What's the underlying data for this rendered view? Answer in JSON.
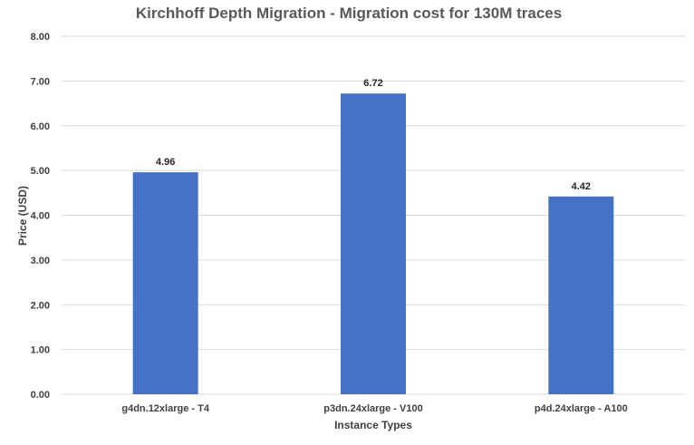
{
  "chart_data": {
    "type": "bar",
    "title": "Kirchhoff Depth Migration - Migration cost for 130M traces",
    "xlabel": "Instance Types",
    "ylabel": "Price (USD)",
    "categories": [
      "g4dn.12xlarge - T4",
      "p3dn.24xlarge - V100",
      "p4d.24xlarge - A100"
    ],
    "values": [
      4.96,
      6.72,
      4.42
    ],
    "data_labels": [
      "4.96",
      "6.72",
      "4.42"
    ],
    "ylim": [
      0,
      8
    ],
    "yticks": [
      0,
      1,
      2,
      3,
      4,
      5,
      6,
      7,
      8
    ],
    "ytick_labels": [
      "0.00",
      "1.00",
      "2.00",
      "3.00",
      "4.00",
      "5.00",
      "6.00",
      "7.00",
      "8.00"
    ],
    "grid": true,
    "legend": "none",
    "bar_color": "#4472c4"
  }
}
